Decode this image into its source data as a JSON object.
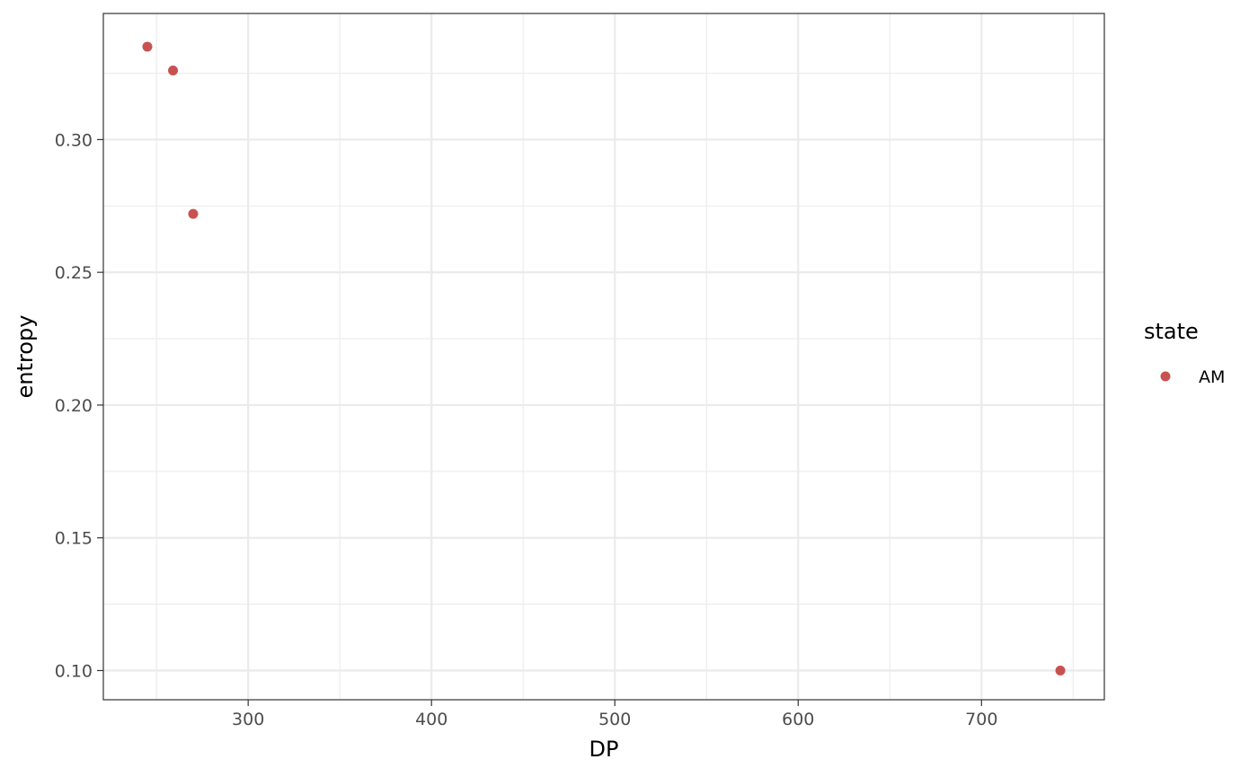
{
  "chart_data": {
    "type": "scatter",
    "xlabel": "DP",
    "ylabel": "entropy",
    "xlim": [
      221,
      767
    ],
    "ylim": [
      0.089,
      0.3475
    ],
    "x_ticks": [
      300,
      400,
      500,
      600,
      700
    ],
    "x_tick_labels": [
      "300",
      "400",
      "500",
      "600",
      "700"
    ],
    "x_minor_ticks": [
      250,
      350,
      450,
      550,
      650,
      750
    ],
    "y_ticks": [
      0.1,
      0.15,
      0.2,
      0.25,
      0.3
    ],
    "y_tick_labels": [
      "0.10",
      "0.15",
      "0.20",
      "0.25",
      "0.30"
    ],
    "y_minor_ticks": [
      0.125,
      0.175,
      0.225,
      0.275,
      0.325
    ],
    "grid": true,
    "legend": {
      "title": "state",
      "position": "right",
      "entries": [
        {
          "label": "AM",
          "color": "#c85250"
        }
      ]
    },
    "series": [
      {
        "name": "AM",
        "color": "#c85250",
        "points": [
          {
            "x": 245,
            "y": 0.335
          },
          {
            "x": 259,
            "y": 0.326
          },
          {
            "x": 270,
            "y": 0.272
          },
          {
            "x": 743,
            "y": 0.1
          }
        ]
      }
    ]
  }
}
